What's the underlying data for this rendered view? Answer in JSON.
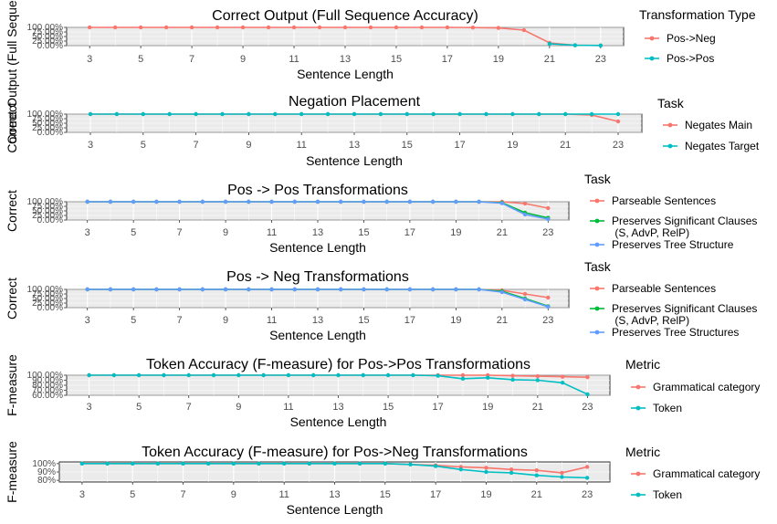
{
  "chart_data": [
    {
      "type": "line",
      "title": "Correct Output  (Full Sequence Accuracy)",
      "xlabel": "Sentence Length",
      "ylabel": "Correct Output (Full Sequence Accuracy)",
      "x_ticks": [
        3,
        5,
        7,
        9,
        11,
        13,
        15,
        17,
        19,
        21,
        23
      ],
      "xlim": [
        2.1,
        23.9
      ],
      "ylim": [
        0,
        1
      ],
      "y_ticks": [
        "0.00%",
        "25.00%",
        "50.00%",
        "75.00%",
        "100.00%"
      ],
      "legend_title": "Transformation Type",
      "legend_position": "right",
      "series": [
        {
          "name": "Pos->Neg",
          "color": "#F8766D",
          "x": [
            3,
            4,
            5,
            6,
            7,
            8,
            9,
            10,
            11,
            12,
            13,
            14,
            15,
            16,
            17,
            18,
            19,
            20,
            21,
            22,
            23
          ],
          "y": [
            1,
            1,
            1,
            1,
            1,
            1,
            1,
            1,
            1,
            1,
            1,
            1,
            1,
            1,
            1,
            0.99,
            0.97,
            0.85,
            0.15,
            0.02,
            0.01
          ]
        },
        {
          "name": "Pos->Pos",
          "color": "#00BFC4",
          "x": [
            21,
            22,
            23
          ],
          "y": [
            0.1,
            0.02,
            0.01
          ]
        }
      ]
    },
    {
      "type": "line",
      "title": "Negation Placement",
      "xlabel": "Sentence Length",
      "ylabel": "Correct",
      "x_ticks": [
        3,
        5,
        7,
        9,
        11,
        13,
        15,
        17,
        19,
        21,
        23
      ],
      "xlim": [
        2.1,
        23.9
      ],
      "ylim": [
        0,
        1
      ],
      "y_ticks": [
        "0.00%",
        "25.00%",
        "50.00%",
        "75.00%",
        "100.00%"
      ],
      "legend_title": "Task",
      "legend_position": "right",
      "series": [
        {
          "name": "Negates Main",
          "color": "#F8766D",
          "x": [
            3,
            4,
            5,
            6,
            7,
            8,
            9,
            10,
            11,
            12,
            13,
            14,
            15,
            16,
            17,
            18,
            19,
            20,
            21,
            22,
            23
          ],
          "y": [
            1,
            1,
            1,
            1,
            1,
            1,
            1,
            1,
            1,
            1,
            1,
            1,
            1,
            1,
            1,
            1,
            1,
            1,
            1,
            0.95,
            0.6
          ]
        },
        {
          "name": "Negates Target",
          "color": "#00BFC4",
          "x": [
            3,
            4,
            5,
            6,
            7,
            8,
            9,
            10,
            11,
            12,
            13,
            14,
            15,
            16,
            17,
            18,
            19,
            20,
            21,
            22,
            23
          ],
          "y": [
            1,
            1,
            1,
            1,
            1,
            1,
            1,
            1,
            1,
            1,
            1,
            1,
            1,
            1,
            1,
            1,
            1,
            1,
            1,
            1,
            1
          ]
        }
      ]
    },
    {
      "type": "line",
      "title": "Pos -> Pos Transformations",
      "xlabel": "Sentence Length",
      "ylabel": "Correct",
      "x_ticks": [
        3,
        5,
        7,
        9,
        11,
        13,
        15,
        17,
        19,
        21,
        23
      ],
      "xlim": [
        2.1,
        23.9
      ],
      "ylim": [
        0,
        1
      ],
      "y_ticks": [
        "0.00%",
        "25.00%",
        "50.00%",
        "75.00%",
        "100.00%"
      ],
      "legend_title": "Task",
      "legend_position": "right",
      "series": [
        {
          "name": "Parseable Sentences",
          "color": "#F8766D",
          "x": [
            3,
            4,
            5,
            6,
            7,
            8,
            9,
            10,
            11,
            12,
            13,
            14,
            15,
            16,
            17,
            18,
            19,
            20,
            21,
            22,
            23
          ],
          "y": [
            1,
            1,
            1,
            1,
            1,
            1,
            1,
            1,
            1,
            1,
            1,
            1,
            1,
            1,
            1,
            1,
            1,
            1,
            1,
            0.9,
            0.65
          ]
        },
        {
          "name": "Preserves Significant Clauses\n (S, AdvP, RelP)",
          "color": "#00BA38",
          "x": [
            3,
            4,
            5,
            6,
            7,
            8,
            9,
            10,
            11,
            12,
            13,
            14,
            15,
            16,
            17,
            18,
            19,
            20,
            21,
            22,
            23
          ],
          "y": [
            1,
            1,
            1,
            1,
            1,
            1,
            1,
            1,
            1,
            1,
            1,
            1,
            1,
            1,
            1,
            1,
            1,
            1,
            0.95,
            0.4,
            0.12
          ]
        },
        {
          "name": "Preserves Tree Structure",
          "color": "#619CFF",
          "x": [
            3,
            4,
            5,
            6,
            7,
            8,
            9,
            10,
            11,
            12,
            13,
            14,
            15,
            16,
            17,
            18,
            19,
            20,
            21,
            22,
            23
          ],
          "y": [
            1,
            1,
            1,
            1,
            1,
            1,
            1,
            1,
            1,
            1,
            1,
            1,
            1,
            1,
            1,
            1,
            1,
            1,
            0.92,
            0.3,
            0.05
          ]
        }
      ]
    },
    {
      "type": "line",
      "title": "Pos -> Neg Transformations",
      "xlabel": "Sentence Length",
      "ylabel": "Correct",
      "x_ticks": [
        3,
        5,
        7,
        9,
        11,
        13,
        15,
        17,
        19,
        21,
        23
      ],
      "xlim": [
        2.1,
        23.9
      ],
      "ylim": [
        0,
        1
      ],
      "y_ticks": [
        "0.00%",
        "25.00%",
        "50.00%",
        "75.00%",
        "100.00%"
      ],
      "legend_title": "Task",
      "legend_position": "right",
      "series": [
        {
          "name": "Parseable Sentences",
          "color": "#F8766D",
          "x": [
            3,
            4,
            5,
            6,
            7,
            8,
            9,
            10,
            11,
            12,
            13,
            14,
            15,
            16,
            17,
            18,
            19,
            20,
            21,
            22,
            23
          ],
          "y": [
            1,
            1,
            1,
            1,
            1,
            1,
            1,
            1,
            1,
            1,
            1,
            1,
            1,
            1,
            1,
            1,
            1,
            1,
            0.95,
            0.75,
            0.55
          ]
        },
        {
          "name": "Preserves Significant Clauses\n (S, AdvP, RelP)",
          "color": "#00BA38",
          "x": [
            3,
            4,
            5,
            6,
            7,
            8,
            9,
            10,
            11,
            12,
            13,
            14,
            15,
            16,
            17,
            18,
            19,
            20,
            21,
            22,
            23
          ],
          "y": [
            1,
            1,
            1,
            1,
            1,
            1,
            1,
            1,
            1,
            1,
            1,
            1,
            1,
            1,
            1,
            1,
            1,
            1,
            0.9,
            0.5,
            0.08
          ]
        },
        {
          "name": "Preserves Tree Structures",
          "color": "#619CFF",
          "x": [
            3,
            4,
            5,
            6,
            7,
            8,
            9,
            10,
            11,
            12,
            13,
            14,
            15,
            16,
            17,
            18,
            19,
            20,
            21,
            22,
            23
          ],
          "y": [
            1,
            1,
            1,
            1,
            1,
            1,
            1,
            1,
            1,
            1,
            1,
            1,
            1,
            1,
            1,
            1,
            1,
            1,
            0.85,
            0.45,
            0.05
          ]
        }
      ]
    },
    {
      "type": "line",
      "title": "Token Accuracy (F-measure) for Pos->Pos Transformations",
      "xlabel": "Sentence Length",
      "ylabel": "F-measure",
      "x_ticks": [
        3,
        5,
        7,
        9,
        11,
        13,
        15,
        17,
        19,
        21,
        23
      ],
      "xlim": [
        2.1,
        23.9
      ],
      "ylim": [
        0.6,
        1
      ],
      "y_ticks": [
        "60.00%",
        "70.00%",
        "80.00%",
        "90.00%",
        "100.00%"
      ],
      "legend_title": "Metric",
      "legend_position": "right",
      "series": [
        {
          "name": "Grammatical category",
          "color": "#F8766D",
          "x": [
            3,
            4,
            5,
            6,
            7,
            8,
            9,
            10,
            11,
            12,
            13,
            14,
            15,
            16,
            17,
            18,
            19,
            20,
            21,
            22,
            23
          ],
          "y": [
            1,
            1,
            1,
            1,
            1,
            1,
            1,
            1,
            1,
            1,
            1,
            1,
            1,
            1,
            1,
            1,
            1,
            0.99,
            0.98,
            0.97,
            0.96
          ]
        },
        {
          "name": "Token",
          "color": "#00BFC4",
          "x": [
            3,
            4,
            5,
            6,
            7,
            8,
            9,
            10,
            11,
            12,
            13,
            14,
            15,
            16,
            17,
            18,
            19,
            20,
            21,
            22,
            23
          ],
          "y": [
            1,
            1,
            1,
            1,
            1,
            1,
            1,
            1,
            1,
            1,
            1,
            1,
            1,
            1,
            0.99,
            0.93,
            0.95,
            0.91,
            0.9,
            0.85,
            0.62
          ]
        }
      ]
    },
    {
      "type": "line",
      "title": "Token Accuracy (F-measure) for Pos->Neg Transformations",
      "xlabel": "Sentence Length",
      "ylabel": "F-measure",
      "x_ticks": [
        3,
        5,
        7,
        9,
        11,
        13,
        15,
        17,
        19,
        21,
        23
      ],
      "xlim": [
        2.1,
        23.9
      ],
      "ylim": [
        0.78,
        1.02
      ],
      "y_ticks": [
        "80%",
        "90%",
        "100%"
      ],
      "y_tick_values": [
        0.8,
        0.9,
        1.0
      ],
      "legend_title": "Metric",
      "legend_position": "right",
      "series": [
        {
          "name": "Grammatical category",
          "color": "#F8766D",
          "x": [
            3,
            4,
            5,
            6,
            7,
            8,
            9,
            10,
            11,
            12,
            13,
            14,
            15,
            16,
            17,
            18,
            19,
            20,
            21,
            22,
            23
          ],
          "y": [
            1,
            1,
            1,
            1,
            1,
            1,
            1,
            1,
            1,
            1,
            1,
            1,
            1,
            0.99,
            0.98,
            0.96,
            0.95,
            0.93,
            0.92,
            0.89,
            0.96
          ]
        },
        {
          "name": "Token",
          "color": "#00BFC4",
          "x": [
            3,
            4,
            5,
            6,
            7,
            8,
            9,
            10,
            11,
            12,
            13,
            14,
            15,
            16,
            17,
            18,
            19,
            20,
            21,
            22,
            23
          ],
          "y": [
            1,
            1,
            1,
            1,
            1,
            1,
            1,
            1,
            1,
            1,
            1,
            1,
            1,
            0.99,
            0.97,
            0.93,
            0.9,
            0.89,
            0.86,
            0.84,
            0.83
          ]
        }
      ]
    }
  ]
}
